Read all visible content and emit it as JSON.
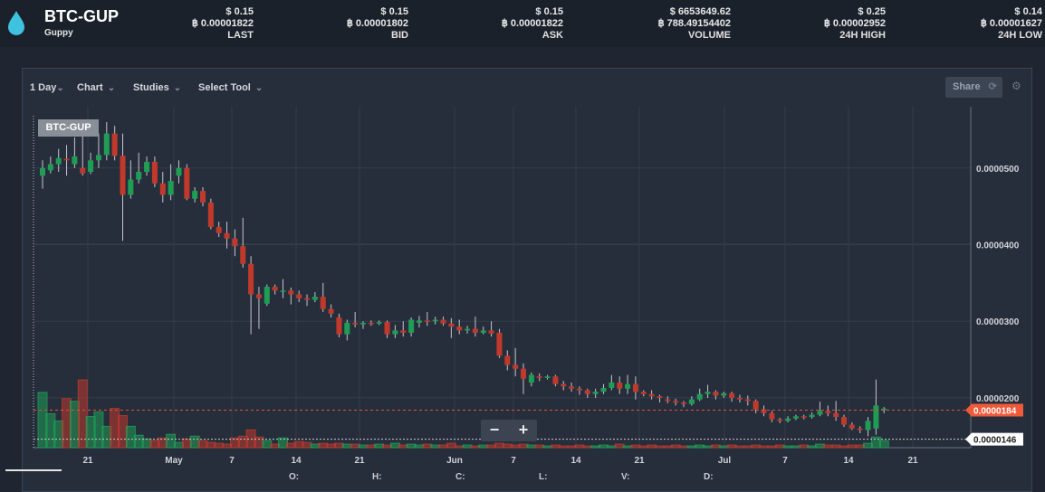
{
  "header": {
    "pair": "BTC-GUP",
    "coin_name": "Guppy",
    "stats": [
      {
        "usd": "$ 0.15",
        "btc": "฿ 0.00001822",
        "label": "LAST"
      },
      {
        "usd": "$ 0.15",
        "btc": "฿ 0.00001802",
        "label": "BID"
      },
      {
        "usd": "$ 0.15",
        "btc": "฿ 0.00001822",
        "label": "ASK"
      },
      {
        "usd": "$ 6653649.62",
        "btc": "฿ 788.49154402",
        "label": "VOLUME"
      },
      {
        "usd": "$ 0.25",
        "btc": "฿ 0.00002952",
        "label": "24H HIGH"
      },
      {
        "usd": "$ 0.14",
        "btc": "฿ 0.00001627",
        "label": "24H LOW"
      }
    ]
  },
  "toolbar": {
    "interval": "1 Day",
    "chart": "Chart",
    "studies": "Studies",
    "select_tool": "Select Tool",
    "share": "Share"
  },
  "ohlc": {
    "o": "O:",
    "h": "H:",
    "c": "C:",
    "l": "L:",
    "v": "V:",
    "d": "D:"
  },
  "colors": {
    "up": "#1f9d55",
    "down": "#c0392b",
    "price_tag": "#f05a3b"
  },
  "chart_data": {
    "type": "candlestick",
    "title": "BTC-GUP",
    "x_tick_labels": [
      "21",
      "May",
      "7",
      "14",
      "21",
      "Jun",
      "7",
      "14",
      "21",
      "Jul",
      "7",
      "14",
      "21"
    ],
    "y_tick_labels": [
      "0.0000500",
      "0.0000400",
      "0.0000300",
      "0.0000200"
    ],
    "ylim": [
      1.35e-05,
      5.8e-05
    ],
    "last_price_label": "0.0000184",
    "low_line_label": "0.0000146",
    "last_price": 1.84e-05,
    "low_line": 1.46e-05,
    "candles": [
      [
        4.9e-05,
        5e-05,
        4.73e-05,
        5.1e-05
      ],
      [
        4.97e-05,
        5.05e-05,
        4.93e-05,
        5.15e-05
      ],
      [
        5.05e-05,
        5.13e-05,
        4.95e-05,
        5.25e-05
      ],
      [
        5.12e-05,
        5.1e-05,
        4.9e-05,
        5.3e-05
      ],
      [
        5.05e-05,
        5.15e-05,
        5e-05,
        5.4e-05
      ],
      [
        5e-05,
        4.93e-05,
        4.9e-05,
        5.6e-05
      ],
      [
        4.95e-05,
        5.1e-05,
        4.92e-05,
        5.2e-05
      ],
      [
        5.1e-05,
        5.17e-05,
        5e-05,
        5.45e-05
      ],
      [
        5.17e-05,
        5.45e-05,
        5.1e-05,
        5.6e-05
      ],
      [
        5.45e-05,
        5.16e-05,
        5.1e-05,
        5.55e-05
      ],
      [
        5.16e-05,
        4.65e-05,
        4.05e-05,
        5.45e-05
      ],
      [
        4.65e-05,
        4.85e-05,
        4.6e-05,
        5.1e-05
      ],
      [
        4.85e-05,
        4.95e-05,
        4.8e-05,
        5.2e-05
      ],
      [
        4.95e-05,
        5.08e-05,
        4.9e-05,
        5.15e-05
      ],
      [
        5.08e-05,
        4.8e-05,
        4.75e-05,
        5.15e-05
      ],
      [
        4.8e-05,
        4.65e-05,
        4.55e-05,
        4.95e-05
      ],
      [
        4.65e-05,
        4.83e-05,
        4.58e-05,
        5.05e-05
      ],
      [
        4.9e-05,
        5e-05,
        4.8e-05,
        5.1e-05
      ],
      [
        5e-05,
        4.6e-05,
        4.58e-05,
        5.05e-05
      ],
      [
        4.6e-05,
        4.7e-05,
        4.55e-05,
        4.75e-05
      ],
      [
        4.7e-05,
        4.55e-05,
        4.5e-05,
        4.75e-05
      ],
      [
        4.55e-05,
        4.23e-05,
        4.2e-05,
        4.6e-05
      ],
      [
        4.23e-05,
        4.15e-05,
        4.1e-05,
        4.3e-05
      ],
      [
        4.15e-05,
        4.08e-05,
        3.95e-05,
        4.3e-05
      ],
      [
        4.08e-05,
        3.98e-05,
        3.85e-05,
        4.2e-05
      ],
      [
        3.98e-05,
        3.75e-05,
        3.7e-05,
        4.35e-05
      ],
      [
        3.75e-05,
        3.35e-05,
        2.83e-05,
        3.85e-05
      ],
      [
        3.35e-05,
        3.3e-05,
        2.9e-05,
        3.45e-05
      ],
      [
        3.23e-05,
        3.45e-05,
        3.2e-05,
        3.48e-05
      ],
      [
        3.45e-05,
        3.4e-05,
        3.35e-05,
        3.48e-05
      ],
      [
        3.4e-05,
        3.4e-05,
        3.3e-05,
        3.55e-05
      ],
      [
        3.4e-05,
        3.35e-05,
        3.22e-05,
        3.44e-05
      ],
      [
        3.35e-05,
        3.3e-05,
        3.25e-05,
        3.4e-05
      ],
      [
        3.3e-05,
        3.28e-05,
        3.2e-05,
        3.35e-05
      ],
      [
        3.28e-05,
        3.32e-05,
        3.25e-05,
        3.38e-05
      ],
      [
        3.32e-05,
        3.16e-05,
        3.12e-05,
        3.5e-05
      ],
      [
        3.16e-05,
        3.1e-05,
        3.05e-05,
        3.22e-05
      ],
      [
        3.05e-05,
        2.83e-05,
        2.79e-05,
        3.1e-05
      ],
      [
        2.83e-05,
        2.98e-05,
        2.75e-05,
        3.02e-05
      ],
      [
        2.98e-05,
        2.96e-05,
        2.92e-05,
        3.12e-05
      ],
      [
        2.96e-05,
        2.98e-05,
        2.9e-05,
        3e-05
      ],
      [
        2.98e-05,
        2.97e-05,
        2.94e-05,
        3.01e-05
      ],
      [
        2.97e-05,
        2.99e-05,
        2.95e-05,
        3.01e-05
      ],
      [
        2.99e-05,
        2.83e-05,
        2.78e-05,
        3.01e-05
      ],
      [
        2.83e-05,
        2.88e-05,
        2.78e-05,
        2.95e-05
      ],
      [
        2.88e-05,
        2.85e-05,
        2.8e-05,
        3e-05
      ],
      [
        2.85e-05,
        3.02e-05,
        2.8e-05,
        3.05e-05
      ],
      [
        2.98e-05,
        3.01e-05,
        2.92e-05,
        3.07e-05
      ],
      [
        3.01e-05,
        3e-05,
        2.94e-05,
        3.12e-05
      ],
      [
        3e-05,
        3.02e-05,
        2.96e-05,
        3.06e-05
      ],
      [
        3.02e-05,
        2.97e-05,
        2.94e-05,
        3.06e-05
      ],
      [
        2.97e-05,
        2.93e-05,
        2.78e-05,
        3.04e-05
      ],
      [
        2.93e-05,
        2.88e-05,
        2.83e-05,
        3.02e-05
      ],
      [
        2.88e-05,
        2.9e-05,
        2.84e-05,
        2.94e-05
      ],
      [
        2.9e-05,
        2.85e-05,
        2.8e-05,
        3.06e-05
      ],
      [
        2.85e-05,
        2.88e-05,
        2.83e-05,
        2.93e-05
      ],
      [
        2.88e-05,
        2.84e-05,
        2.8e-05,
        3e-05
      ],
      [
        2.85e-05,
        2.55e-05,
        2.52e-05,
        2.9e-05
      ],
      [
        2.55e-05,
        2.43e-05,
        2.36e-05,
        2.62e-05
      ],
      [
        2.43e-05,
        2.38e-05,
        2.28e-05,
        2.65e-05
      ],
      [
        2.38e-05,
        2.25e-05,
        2.05e-05,
        2.45e-05
      ],
      [
        2.2e-05,
        2.3e-05,
        2.15e-05,
        2.33e-05
      ],
      [
        2.28e-05,
        2.26e-05,
        2.22e-05,
        2.32e-05
      ],
      [
        2.26e-05,
        2.28e-05,
        2.24e-05,
        2.3e-05
      ],
      [
        2.28e-05,
        2.18e-05,
        2.15e-05,
        2.3e-05
      ],
      [
        2.18e-05,
        2.15e-05,
        2.1e-05,
        2.22e-05
      ],
      [
        2.15e-05,
        2.12e-05,
        2.08e-05,
        2.2e-05
      ],
      [
        2.12e-05,
        2.1e-05,
        2.04e-05,
        2.15e-05
      ],
      [
        2.1e-05,
        2.05e-05,
        2e-05,
        2.12e-05
      ],
      [
        2.05e-05,
        2.08e-05,
        2e-05,
        2.12e-05
      ],
      [
        2.08e-05,
        2.13e-05,
        2.05e-05,
        2.18e-05
      ],
      [
        2.13e-05,
        2.2e-05,
        2.1e-05,
        2.3e-05
      ],
      [
        2.2e-05,
        2.12e-05,
        2.05e-05,
        2.28e-05
      ],
      [
        2.12e-05,
        2.18e-05,
        2.05e-05,
        2.3e-05
      ],
      [
        2.18e-05,
        2.08e-05,
        1.98e-05,
        2.28e-05
      ],
      [
        2.08e-05,
        2.05e-05,
        2.02e-05,
        2.1e-05
      ],
      [
        2.05e-05,
        2.02e-05,
        1.98e-05,
        2.1e-05
      ],
      [
        2.02e-05,
        2e-05,
        1.94e-05,
        2.04e-05
      ],
      [
        1.98e-05,
        1.96e-05,
        1.93e-05,
        2.02e-05
      ],
      [
        1.96e-05,
        1.94e-05,
        1.9e-05,
        1.99e-05
      ],
      [
        1.94e-05,
        1.92e-05,
        1.88e-05,
        1.96e-05
      ],
      [
        1.92e-05,
        1.98e-05,
        1.9e-05,
        2.02e-05
      ],
      [
        1.98e-05,
        2.05e-05,
        1.96e-05,
        2.12e-05
      ],
      [
        2.05e-05,
        2.08e-05,
        2e-05,
        2.17e-05
      ],
      [
        2.08e-05,
        2.03e-05,
        1.98e-05,
        2.1e-05
      ],
      [
        2.03e-05,
        2.06e-05,
        2e-05,
        2.08e-05
      ],
      [
        2.06e-05,
        2e-05,
        1.95e-05,
        2.08e-05
      ],
      [
        2e-05,
        1.98e-05,
        1.94e-05,
        2.04e-05
      ],
      [
        1.98e-05,
        1.96e-05,
        1.9e-05,
        2.03e-05
      ],
      [
        1.96e-05,
        1.85e-05,
        1.8e-05,
        1.98e-05
      ],
      [
        1.85e-05,
        1.8e-05,
        1.76e-05,
        1.9e-05
      ],
      [
        1.8e-05,
        1.72e-05,
        1.68e-05,
        1.83e-05
      ],
      [
        1.72e-05,
        1.7e-05,
        1.67e-05,
        1.74e-05
      ],
      [
        1.7e-05,
        1.73e-05,
        1.68e-05,
        1.76e-05
      ],
      [
        1.73e-05,
        1.76e-05,
        1.71e-05,
        1.78e-05
      ],
      [
        1.76e-05,
        1.75e-05,
        1.72e-05,
        1.78e-05
      ],
      [
        1.75e-05,
        1.78e-05,
        1.73e-05,
        1.81e-05
      ],
      [
        1.78e-05,
        1.83e-05,
        1.76e-05,
        1.95e-05
      ],
      [
        1.83e-05,
        1.8e-05,
        1.76e-05,
        1.9e-05
      ],
      [
        1.8e-05,
        1.75e-05,
        1.7e-05,
        1.96e-05
      ],
      [
        1.75e-05,
        1.65e-05,
        1.62e-05,
        1.78e-05
      ],
      [
        1.65e-05,
        1.6e-05,
        1.58e-05,
        1.68e-05
      ],
      [
        1.6e-05,
        1.58e-05,
        1.54e-05,
        1.63e-05
      ],
      [
        1.58e-05,
        1.7e-05,
        1.5e-05,
        1.75e-05
      ],
      [
        1.6e-05,
        1.9e-05,
        1.52e-05,
        2.24e-05
      ],
      [
        1.84e-05,
        1.86e-05,
        1.8e-05,
        1.88e-05
      ]
    ],
    "volumes": [
      0.62,
      0.38,
      0.3,
      0.55,
      0.52,
      0.76,
      0.35,
      0.4,
      0.24,
      0.44,
      0.36,
      0.24,
      0.14,
      0.1,
      0.08,
      0.11,
      0.15,
      0.06,
      0.1,
      0.13,
      0.08,
      0.06,
      0.05,
      0.04,
      0.11,
      0.13,
      0.2,
      0.12,
      0.08,
      0.04,
      0.11,
      0.05,
      0.07,
      0.06,
      0.04,
      0.05,
      0.04,
      0.05,
      0.04,
      0.04,
      0.03,
      0.03,
      0.04,
      0.03,
      0.05,
      0.03,
      0.04,
      0.03,
      0.04,
      0.03,
      0.03,
      0.05,
      0.02,
      0.03,
      0.02,
      0.03,
      0.03,
      0.05,
      0.04,
      0.03,
      0.04,
      0.03,
      0.03,
      0.02,
      0.03,
      0.02,
      0.02,
      0.03,
      0.02,
      0.02,
      0.03,
      0.02,
      0.04,
      0.02,
      0.03,
      0.02,
      0.03,
      0.02,
      0.02,
      0.03,
      0.02,
      0.02,
      0.03,
      0.02,
      0.03,
      0.02,
      0.03,
      0.02,
      0.02,
      0.03,
      0.02,
      0.02,
      0.03,
      0.02,
      0.02,
      0.03,
      0.02,
      0.04,
      0.03,
      0.03,
      0.02,
      0.03,
      0.03,
      0.05,
      0.12,
      0.08
    ]
  }
}
